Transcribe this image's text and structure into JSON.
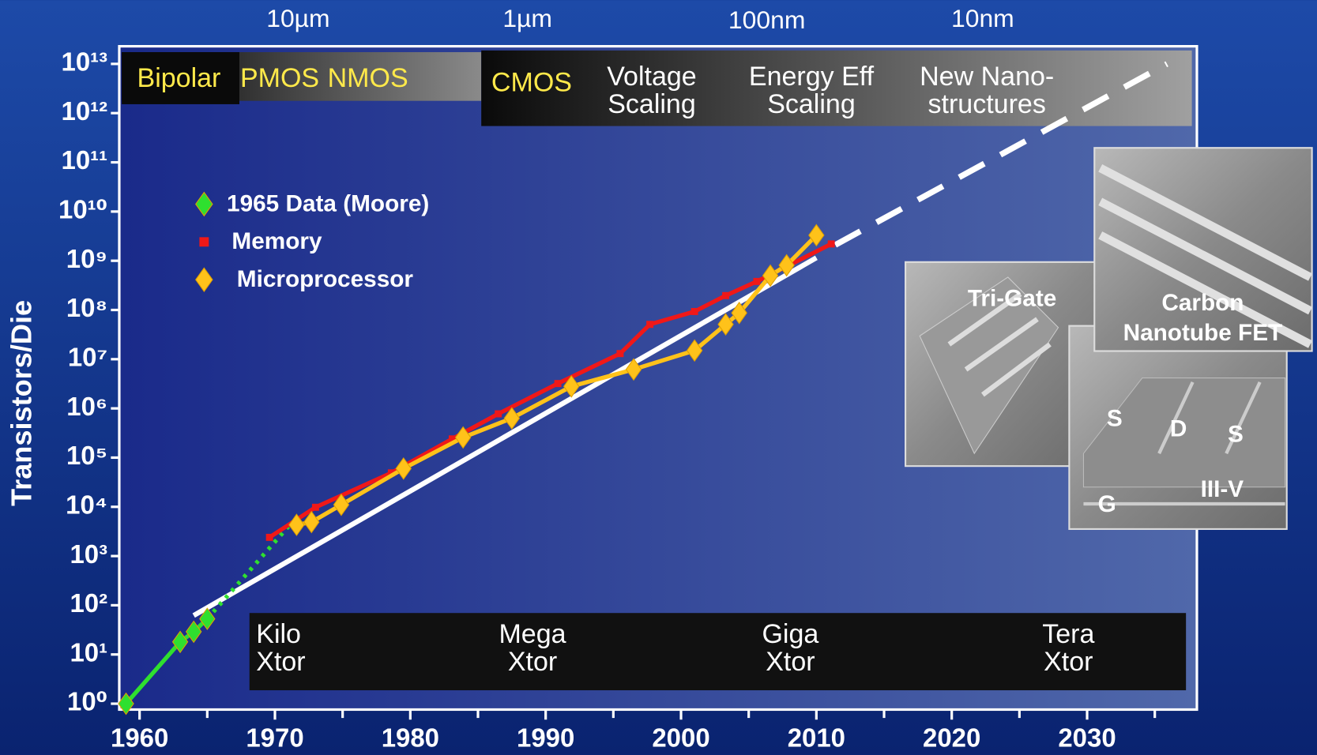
{
  "chart_data": {
    "type": "line",
    "y_label": "Transistors/Die",
    "log_y": true,
    "xlim": [
      1958.5,
      2037.8
    ],
    "ylim": [
      1,
      10000000000000
    ],
    "xticks": [
      1960,
      1970,
      1980,
      1990,
      2000,
      2010,
      2020,
      2030
    ],
    "xminorticks": [
      1965,
      1975,
      1985,
      1995,
      2005,
      2015,
      2025,
      2035
    ],
    "yticks": [
      {
        "value": 1,
        "label": "10⁰"
      },
      {
        "value": 10,
        "label": "10¹"
      },
      {
        "value": 100,
        "label": "10²"
      },
      {
        "value": 1000,
        "label": "10³"
      },
      {
        "value": 10000,
        "label": "10⁴"
      },
      {
        "value": 100000,
        "label": "10⁵"
      },
      {
        "value": 1000000,
        "label": "10⁶"
      },
      {
        "value": 10000000,
        "label": "10⁷"
      },
      {
        "value": 100000000,
        "label": "10⁸"
      },
      {
        "value": 1000000000,
        "label": "10⁹"
      },
      {
        "value": 10000000000,
        "label": "10¹⁰"
      },
      {
        "value": 100000000000,
        "label": "10¹¹"
      },
      {
        "value": 1000000000000,
        "label": "10¹²"
      },
      {
        "value": 10000000000000,
        "label": "10¹³"
      }
    ],
    "series": [
      {
        "name": "1965 Data (Moore)",
        "color": "#2fe02f",
        "marker": "diamond",
        "x": [
          1959,
          1963,
          1964,
          1965
        ],
        "values": [
          1,
          18,
          29,
          53
        ]
      },
      {
        "name": "Memory",
        "color": "#f01818",
        "marker": "square",
        "x": [
          1969.6,
          1973.0,
          1978.6,
          1983.1,
          1986.5,
          1990.9,
          1995.5,
          1997.7,
          2001.0,
          2003.3,
          2005.6,
          2011.1
        ],
        "values": [
          2400,
          9800,
          49000,
          240000,
          776000,
          3200000,
          13000000,
          51000000,
          93000000,
          196000000,
          380000000,
          2200000000
        ]
      },
      {
        "name": "Microprocessor",
        "color": "#ffc21a",
        "marker": "diamond",
        "x": [
          1971.6,
          1972.7,
          1974.9,
          1979.5,
          1983.9,
          1987.5,
          1991.9,
          1996.5,
          2001.0,
          2003.3,
          2004.3,
          2006.6,
          2007.8,
          2010.0
        ],
        "values": [
          4300,
          4900,
          11000,
          60000,
          257000,
          630000,
          2800000,
          6200000,
          15000000,
          51000000,
          87000000,
          500000000,
          810000000,
          3300000000
        ]
      }
    ],
    "extrapolation": {
      "color": "#2fe02f",
      "x": [
        1965,
        1971
      ],
      "values": [
        53,
        4000
      ]
    },
    "trend": {
      "color": "#ffffff",
      "x": [
        1964,
        2010
      ],
      "values": [
        62,
        1150000000
      ]
    },
    "projection": {
      "color": "#ffffff",
      "x": [
        2011.4,
        2035.9
      ],
      "values": [
        2100000000,
        10000000000000
      ]
    },
    "feature_sizes": [
      "10µm",
      "1µm",
      "100nm",
      "10nm"
    ],
    "technologies": {
      "early": [
        "Bipolar",
        "PMOS",
        "NMOS"
      ],
      "cmos": [
        "CMOS"
      ],
      "later": [
        [
          "Voltage",
          "Scaling"
        ],
        [
          "Energy Eff",
          "Scaling"
        ],
        [
          "New Nano-",
          "structures"
        ]
      ]
    },
    "scale_labels": [
      [
        "Kilo",
        "Xtor"
      ],
      [
        "Mega",
        "Xtor"
      ],
      [
        "Giga",
        "Xtor"
      ],
      [
        "Tera",
        "Xtor"
      ]
    ],
    "insets": {
      "tri_gate": "Tri-Gate",
      "cnt": [
        "Carbon",
        "Nanotube FET"
      ],
      "iii_v": [
        "S",
        "D",
        "S",
        "G",
        "III-V"
      ]
    }
  }
}
